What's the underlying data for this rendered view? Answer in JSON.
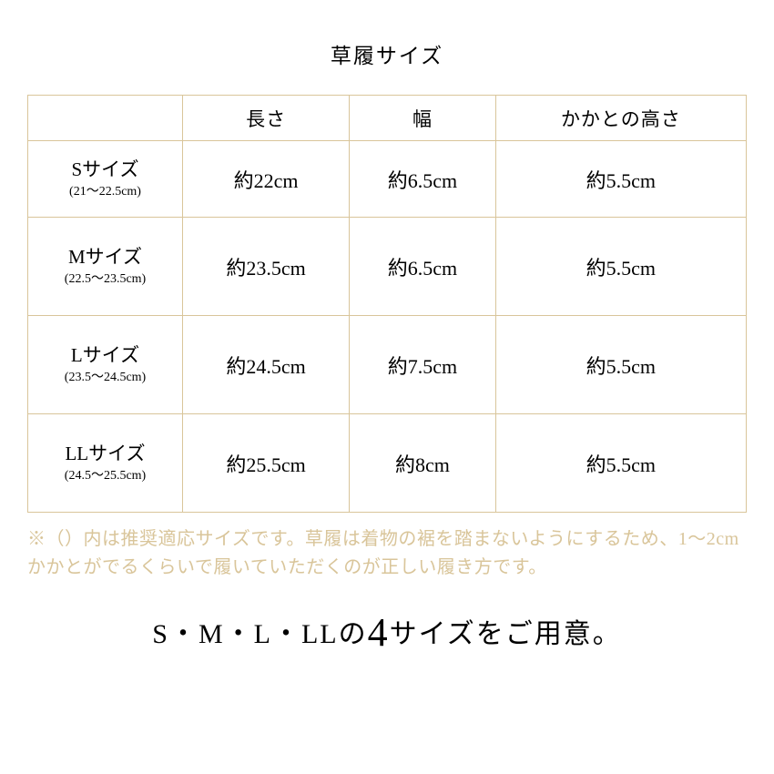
{
  "title": "草履サイズ",
  "columns": [
    "",
    "長さ",
    "幅",
    "かかとの高さ"
  ],
  "rows": [
    {
      "name": "Sサイズ",
      "range": "(21〜22.5cm)",
      "length": "約22cm",
      "width": "約6.5cm",
      "heel": "約5.5cm"
    },
    {
      "name": "Mサイズ",
      "range": "(22.5〜23.5cm)",
      "length": "約23.5cm",
      "width": "約6.5cm",
      "heel": "約5.5cm"
    },
    {
      "name": "Lサイズ",
      "range": "(23.5〜24.5cm)",
      "length": "約24.5cm",
      "width": "約7.5cm",
      "heel": "約5.5cm"
    },
    {
      "name": "LLサイズ",
      "range": "(24.5〜25.5cm)",
      "length": "約25.5cm",
      "width": "約8cm",
      "heel": "約5.5cm"
    }
  ],
  "note": "※（）内は推奨適応サイズです。草履は着物の裾を踏まないようにするため、1〜2cmかかとがでるくらいで履いていただくのが正しい履き方です。",
  "tagline_pre": "S・M・L・LLの",
  "tagline_num": "4",
  "tagline_post": "サイズをご用意。",
  "colors": {
    "border": "#d9c59a",
    "note": "#d9c59a",
    "text": "#000000",
    "bg": "#ffffff"
  }
}
